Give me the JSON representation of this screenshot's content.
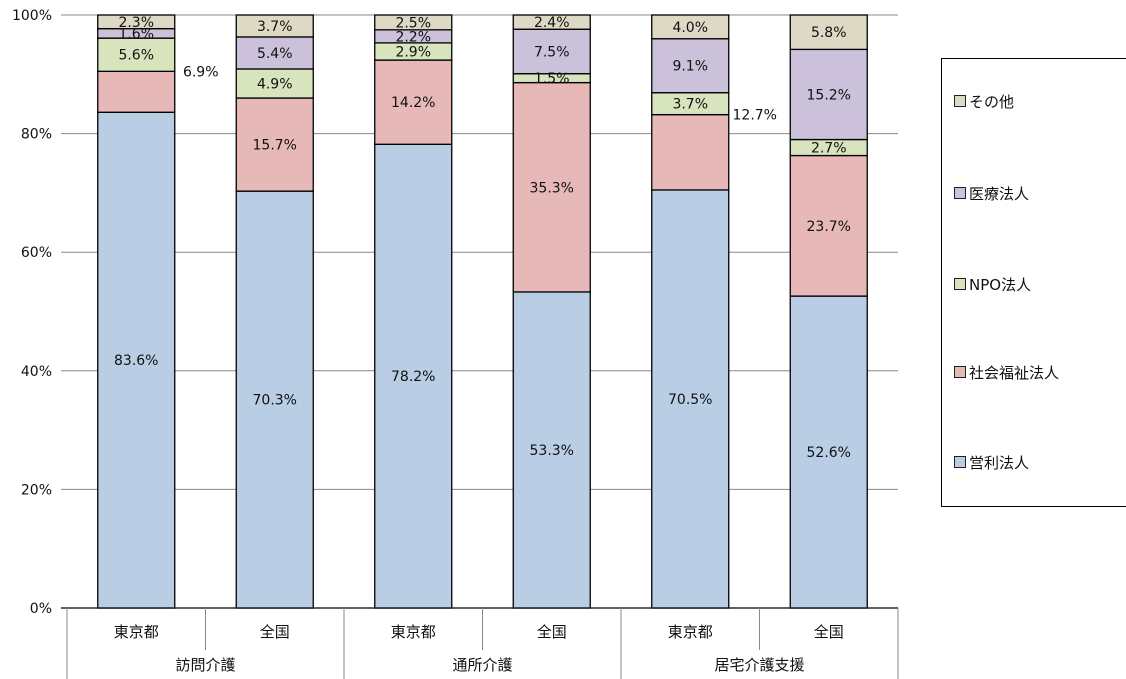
{
  "chart_data": {
    "type": "bar",
    "stacked": true,
    "groups": [
      "訪問介護",
      "通所介護",
      "居宅介護支援"
    ],
    "categories": [
      "東京都",
      "全国",
      "東京都",
      "全国",
      "東京都",
      "全国"
    ],
    "ylim": [
      0,
      100
    ],
    "y_ticks": [
      "0%",
      "20%",
      "40%",
      "60%",
      "80%",
      "100%"
    ],
    "grid": true,
    "legend_placement": "right",
    "series": [
      {
        "name": "営利法人",
        "color": "#b9cde5",
        "values": [
          83.6,
          70.3,
          78.2,
          53.3,
          70.5,
          52.6
        ],
        "labels": [
          "83.6%",
          "70.3%",
          "78.2%",
          "53.3%",
          "70.5%",
          "52.6%"
        ]
      },
      {
        "name": "社会福祉法人",
        "color": "#e6b9b8",
        "values": [
          6.9,
          15.7,
          14.2,
          35.3,
          12.7,
          23.7
        ],
        "labels": [
          "6.9%",
          "15.7%",
          "14.2%",
          "35.3%",
          "12.7%",
          "23.7%"
        ]
      },
      {
        "name": "NPO法人",
        "color": "#d7e4bd",
        "values": [
          5.6,
          4.9,
          2.9,
          1.5,
          3.7,
          2.7
        ],
        "labels": [
          "5.6%",
          "4.9%",
          "2.9%",
          "1.5%",
          "3.7%",
          "2.7%"
        ]
      },
      {
        "name": "医療法人",
        "color": "#ccc1da",
        "values": [
          1.6,
          5.4,
          2.2,
          7.5,
          9.1,
          15.2
        ],
        "labels": [
          "1.6%",
          "5.4%",
          "2.2%",
          "7.5%",
          "9.1%",
          "15.2%"
        ]
      },
      {
        "name": "その他",
        "color": "#ddd9c4",
        "values": [
          2.3,
          3.7,
          2.5,
          2.4,
          4.0,
          5.8
        ],
        "labels": [
          "2.3%",
          "3.7%",
          "2.5%",
          "2.4%",
          "4.0%",
          "5.8%"
        ]
      }
    ],
    "legend_order": [
      "その他",
      "医療法人",
      "NPO法人",
      "社会福祉法人",
      "営利法人"
    ]
  }
}
